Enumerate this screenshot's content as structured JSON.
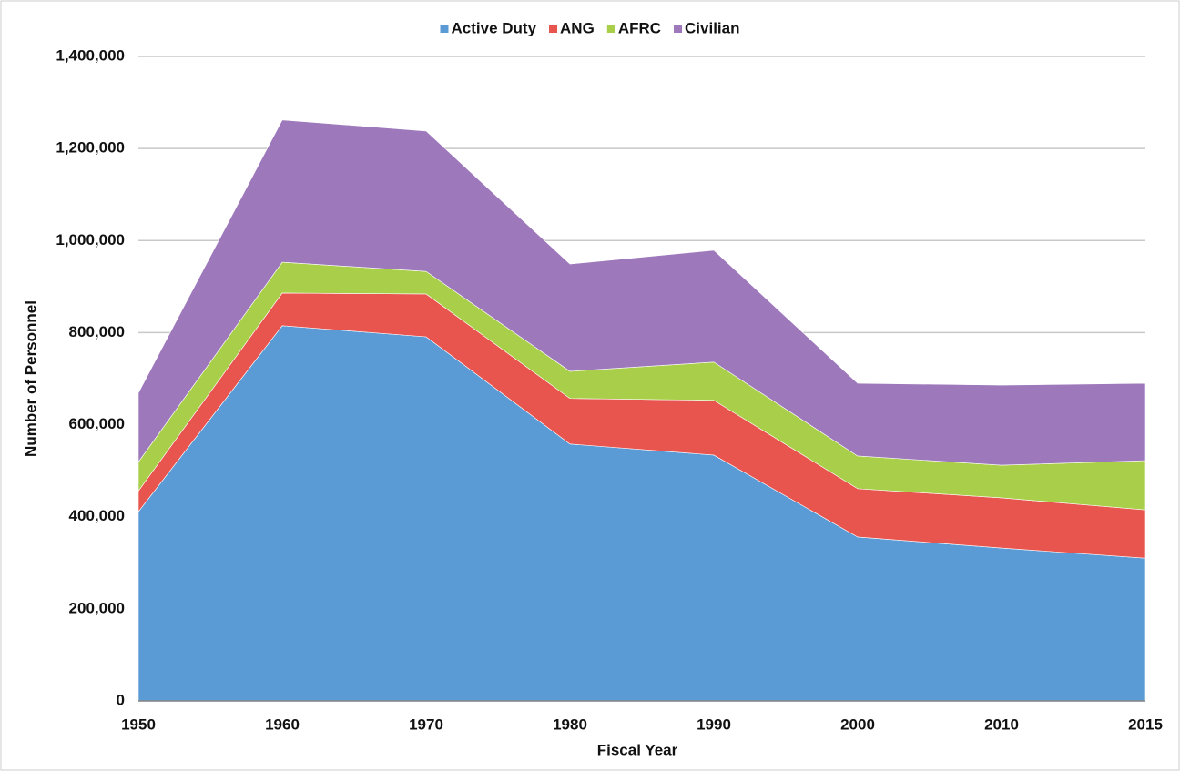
{
  "chart_data": {
    "type": "stacked_area",
    "xlabel": "Fiscal Year",
    "ylabel": "Number of Personnel",
    "categories": [
      "1950",
      "1960",
      "1970",
      "1980",
      "1990",
      "2000",
      "2010",
      "2015"
    ],
    "series": [
      {
        "name": "Active Duty",
        "color": "#5b9bd5",
        "values": [
          411000,
          815000,
          791000,
          558000,
          534000,
          356000,
          332000,
          310000
        ]
      },
      {
        "name": "ANG",
        "color": "#e8544e",
        "values": [
          45000,
          71000,
          93000,
          99000,
          119000,
          105000,
          109000,
          105000
        ]
      },
      {
        "name": "AFRC",
        "color": "#a9cf4a",
        "values": [
          63000,
          67000,
          49000,
          59000,
          83000,
          71000,
          71000,
          107000
        ]
      },
      {
        "name": "Civilian",
        "color": "#9d78bb",
        "values": [
          150000,
          309000,
          305000,
          233000,
          243000,
          158000,
          174000,
          168000
        ]
      }
    ],
    "ylim": [
      0,
      1400000
    ],
    "yticks": [
      0,
      {
        "value": 200000,
        "label": "200,000"
      },
      {
        "value": 400000,
        "label": "400,000"
      },
      {
        "value": 600000,
        "label": "600,000"
      },
      {
        "value": 800000,
        "label": "800,000"
      },
      {
        "value": 1000000,
        "label": "1,000,000"
      },
      {
        "value": 1200000,
        "label": "1,200,000"
      },
      {
        "value": 1400000,
        "label": "1,400,000"
      }
    ],
    "grid": true,
    "legend": "top"
  }
}
